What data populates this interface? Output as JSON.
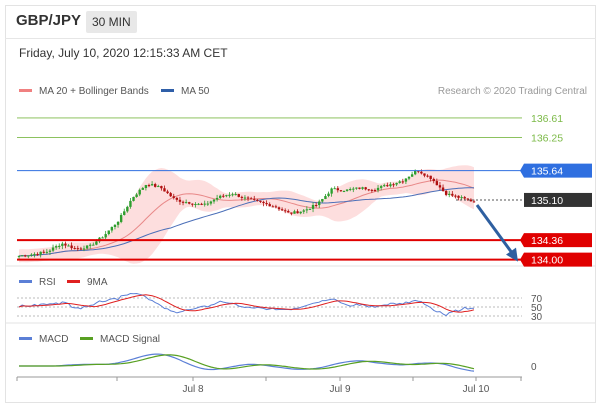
{
  "header": {
    "pair": "GBP/JPY",
    "interval": "30 MIN",
    "timestamp": "Friday, July 10, 2020 12:15:33 AM CET"
  },
  "main_panel": {
    "legend": [
      {
        "label": "MA 20 + Bollinger Bands",
        "color": "#f08080"
      },
      {
        "label": "MA 50",
        "color": "#2f5fa8"
      }
    ],
    "credit": "Research © 2020 Trading Central"
  },
  "rsi_panel": {
    "legend": [
      {
        "label": "RSI",
        "color": "#5b7fd6"
      },
      {
        "label": "9MA",
        "color": "#e02020"
      }
    ],
    "levels": [
      "70",
      "50",
      "30"
    ]
  },
  "macd_panel": {
    "legend": [
      {
        "label": "MACD",
        "color": "#5b7fd6"
      },
      {
        "label": "MACD Signal",
        "color": "#58a022"
      }
    ],
    "zero_label": "0"
  },
  "x_axis": {
    "ticks": [
      "Jul 8",
      "Jul 9",
      "Jul 10"
    ]
  },
  "colors": {
    "up": "#2e9e2e",
    "down": "#b01010",
    "resistance": "#e00000",
    "support_blue": "#2f6fe0",
    "target_green": "#7cba48",
    "arrow": "#2e5fa0",
    "current_price_bg": "#333333"
  },
  "chart_data": {
    "type": "candlestick",
    "price_levels": [
      {
        "value": 136.61,
        "label": "136.61",
        "kind": "target",
        "color": "#7cba48"
      },
      {
        "value": 136.25,
        "label": "136.25",
        "kind": "target",
        "color": "#7cba48"
      },
      {
        "value": 135.64,
        "label": "135.64",
        "kind": "pivot",
        "color": "#2f6fe0"
      },
      {
        "value": 135.1,
        "label": "135.10",
        "kind": "last",
        "color": "#333333"
      },
      {
        "value": 134.36,
        "label": "134.36",
        "kind": "support",
        "color": "#e00000"
      },
      {
        "value": 134.0,
        "label": "134.00",
        "kind": "support",
        "color": "#e00000"
      }
    ],
    "ylim": [
      133.92,
      136.72
    ],
    "close_path": [
      134.07,
      134.1,
      134.15,
      134.3,
      134.2,
      134.25,
      134.45,
      134.72,
      135.15,
      135.4,
      135.32,
      135.1,
      135.05,
      135.0,
      135.15,
      135.22,
      135.12,
      135.05,
      134.98,
      134.85,
      134.9,
      135.02,
      135.3,
      135.28,
      135.32,
      135.3,
      135.38,
      135.46,
      135.65,
      135.5,
      135.22,
      135.14,
      135.07
    ],
    "arrow_target": 134.0
  }
}
